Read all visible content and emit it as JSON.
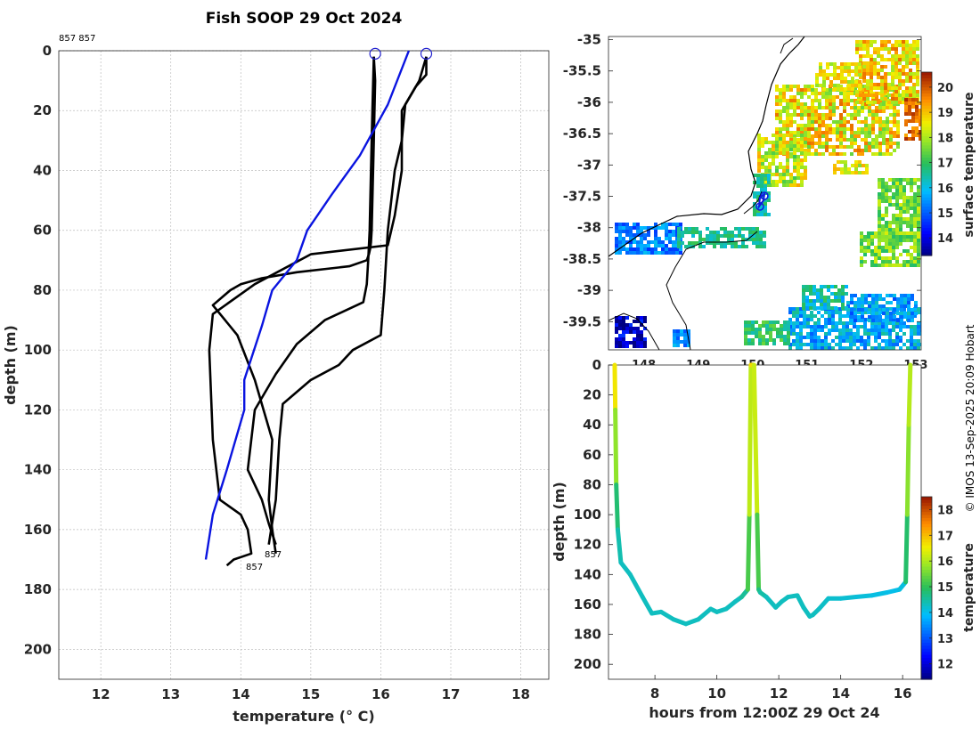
{
  "title": "Fish SOOP 29 Oct 2024",
  "credit": "© IMOS 13-Sep-2025 20:09 Hobart",
  "colors": {
    "profile": "#000000",
    "climatology": "#0a14e0",
    "marker": "#2020d0"
  },
  "chart_data": [
    {
      "type": "line",
      "name": "temperature-profiles",
      "title": "Fish SOOP 29 Oct 2024",
      "xlabel": "temperature (° C)",
      "ylabel": "depth (m)",
      "xlim": [
        11.4,
        18.4
      ],
      "ylim": [
        210,
        0
      ],
      "xticks": [
        "12",
        "13",
        "14",
        "15",
        "16",
        "17",
        "18"
      ],
      "yticks": [
        "0",
        "20",
        "40",
        "60",
        "80",
        "100",
        "120",
        "140",
        "160",
        "180",
        "200"
      ],
      "top_label": "857 857",
      "profile_labels": [
        "857",
        "857"
      ],
      "series": [
        {
          "name": "profile-1",
          "temperature": [
            15.9,
            15.92,
            15.9,
            15.88,
            15.87,
            15.86,
            15.85,
            15.83,
            15.8,
            15.55,
            14.8,
            14.3,
            14.0,
            13.85,
            13.6,
            13.95,
            14.2,
            14.45,
            14.4,
            14.45,
            14.5
          ],
          "depth": [
            2,
            10,
            30,
            50,
            60,
            64,
            66,
            68,
            70,
            72,
            74,
            76,
            78,
            80,
            85,
            95,
            110,
            130,
            150,
            160,
            168
          ]
        },
        {
          "name": "profile-2",
          "temperature": [
            15.9,
            15.88,
            15.86,
            15.84,
            15.82,
            15.8,
            15.75,
            15.2,
            14.8,
            14.5,
            14.2,
            14.1,
            14.3,
            14.4,
            14.5
          ],
          "depth": [
            2,
            20,
            40,
            60,
            70,
            78,
            84,
            90,
            98,
            108,
            120,
            140,
            150,
            158,
            165
          ]
        },
        {
          "name": "profile-3",
          "temperature": [
            16.65,
            16.65,
            16.5,
            16.35,
            16.3,
            16.2,
            16.15,
            16.1,
            16.05,
            16.0,
            15.6,
            15.4,
            15.0,
            14.6,
            14.55,
            14.5,
            14.4
          ],
          "depth": [
            2,
            8,
            12,
            18,
            30,
            40,
            50,
            60,
            80,
            95,
            100,
            105,
            110,
            118,
            130,
            150,
            165
          ]
        },
        {
          "name": "profile-4",
          "temperature": [
            16.65,
            16.55,
            16.3,
            16.3,
            16.2,
            16.1,
            15.0,
            14.2,
            13.6,
            13.55,
            13.6,
            13.7,
            14.0,
            14.1,
            14.15,
            13.9,
            13.8
          ],
          "depth": [
            2,
            10,
            20,
            40,
            55,
            65,
            68,
            78,
            88,
            100,
            130,
            150,
            155,
            160,
            168,
            170,
            172
          ]
        },
        {
          "name": "climatology",
          "temperature": [
            16.4,
            16.1,
            15.7,
            15.3,
            14.95,
            14.8,
            14.45,
            14.3,
            14.05,
            14.05,
            13.8,
            13.6,
            13.5
          ],
          "depth": [
            0,
            18,
            35,
            48,
            60,
            70,
            80,
            92,
            110,
            120,
            140,
            155,
            170
          ]
        }
      ],
      "markers": [
        {
          "temperature": 15.92,
          "depth": 1
        },
        {
          "temperature": 16.65,
          "depth": 1
        }
      ]
    },
    {
      "type": "heatmap",
      "name": "surface-temperature-map",
      "xticks": [
        "148",
        "149",
        "150",
        "151",
        "152",
        "153"
      ],
      "yticks": [
        "-35",
        "-35.5",
        "-36",
        "-36.5",
        "-37",
        "-37.5",
        "-38",
        "-38.5",
        "-39",
        "-39.5"
      ],
      "xlim": [
        147.35,
        153.1
      ],
      "ylim": [
        -39.95,
        -34.95
      ],
      "colorbar": {
        "label": "surface temperature",
        "range": [
          13.3,
          20.6
        ],
        "ticks": [
          "14",
          "15",
          "16",
          "17",
          "18",
          "19",
          "20"
        ]
      },
      "track": {
        "lon": [
          150.5,
          150.5,
          150.6,
          150.75,
          150.72
        ],
        "lat": [
          -37.65,
          -37.55,
          -37.5,
          -37.45,
          -37.38
        ]
      }
    },
    {
      "type": "line",
      "name": "depth-time-section",
      "xlabel": "hours from 12:00Z 29 Oct 24",
      "ylabel": "depth (m)",
      "xlim": [
        6.5,
        16.6
      ],
      "ylim": [
        210,
        0
      ],
      "xticks": [
        "8",
        "10",
        "12",
        "14",
        "16"
      ],
      "yticks": [
        "0",
        "20",
        "40",
        "60",
        "80",
        "100",
        "120",
        "140",
        "160",
        "180",
        "200"
      ],
      "colorbar": {
        "label": "temperature",
        "range": [
          11.4,
          18.5
        ],
        "ticks": [
          "12",
          "13",
          "14",
          "15",
          "16",
          "17",
          "18"
        ]
      },
      "hours": [
        6.7,
        6.72,
        6.75,
        6.8,
        6.9,
        7.2,
        7.6,
        7.9,
        8.2,
        8.6,
        9.0,
        9.4,
        9.8,
        10.0,
        10.3,
        10.6,
        10.8,
        11.0,
        11.05,
        11.1,
        11.2,
        11.3,
        11.35,
        11.4,
        11.6,
        11.9,
        12.1,
        12.3,
        12.6,
        12.8,
        13.0,
        13.1,
        13.3,
        13.6,
        14.0,
        14.5,
        15.0,
        15.5,
        15.9,
        16.1,
        16.15,
        16.2,
        16.25
      ],
      "depth": [
        0,
        30,
        80,
        110,
        132,
        140,
        155,
        166,
        165,
        170,
        173,
        170,
        163,
        165,
        163,
        158,
        155,
        150,
        100,
        0,
        0,
        100,
        150,
        152,
        155,
        162,
        158,
        155,
        154,
        162,
        168,
        167,
        163,
        156,
        156,
        155,
        154,
        152,
        150,
        145,
        100,
        40,
        0
      ],
      "temperature": [
        16.8,
        16.4,
        15.1,
        14.5,
        14.3,
        14.3,
        14.3,
        14.3,
        14.3,
        14.3,
        14.3,
        14.3,
        14.3,
        14.3,
        14.3,
        14.3,
        14.3,
        14.8,
        15.6,
        16.6,
        16.8,
        15.6,
        14.8,
        14.6,
        14.3,
        14.3,
        14.3,
        14.3,
        14.3,
        14.3,
        14.3,
        14.3,
        14.3,
        14.2,
        14.2,
        14.15,
        14.1,
        14.05,
        14.0,
        14.2,
        15.5,
        15.9,
        16.2
      ]
    }
  ]
}
